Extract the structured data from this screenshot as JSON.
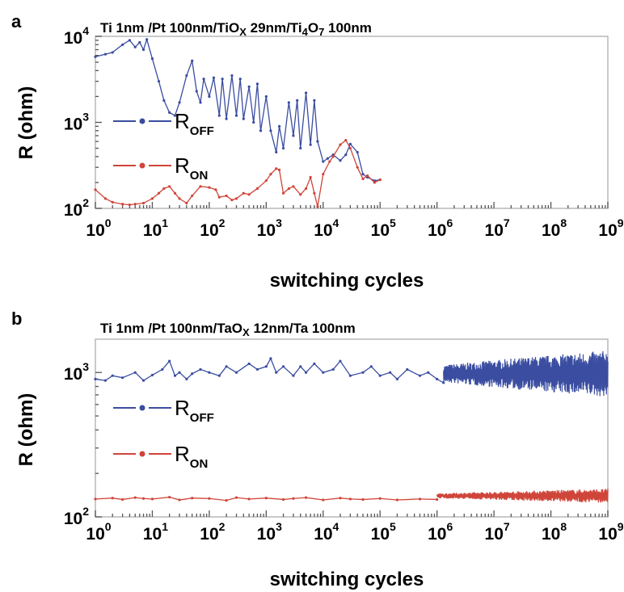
{
  "chart_data": [
    {
      "type": "line",
      "panel_label": "a",
      "title": "Ti 1nm /Pt 100nm/TiOX 29nm/Ti4O7 100nm",
      "title_parts": [
        {
          "t": "Ti 1nm /Pt 100nm/TiO"
        },
        {
          "t": "X",
          "sub": true
        },
        {
          "t": " 29nm/Ti"
        },
        {
          "t": "4",
          "sub": true
        },
        {
          "t": "O"
        },
        {
          "t": "7",
          "sub": true
        },
        {
          "t": " 100nm"
        }
      ],
      "xlabel": "switching cycles",
      "ylabel": "R (ohm)",
      "xscale": "log",
      "yscale": "log",
      "xlim": [
        1,
        1000000000
      ],
      "ylim": [
        100,
        10000
      ],
      "x_ticks": [
        {
          "base": "10",
          "exp": "0",
          "v": 1
        },
        {
          "base": "10",
          "exp": "1",
          "v": 10
        },
        {
          "base": "10",
          "exp": "2",
          "v": 100
        },
        {
          "base": "10",
          "exp": "3",
          "v": 1000
        },
        {
          "base": "10",
          "exp": "4",
          "v": 10000
        },
        {
          "base": "10",
          "exp": "5",
          "v": 100000
        },
        {
          "base": "10",
          "exp": "6",
          "v": 1000000
        },
        {
          "base": "10",
          "exp": "7",
          "v": 10000000
        },
        {
          "base": "10",
          "exp": "8",
          "v": 100000000
        },
        {
          "base": "10",
          "exp": "9",
          "v": 1000000000
        }
      ],
      "y_ticks": [
        {
          "base": "10",
          "exp": "2",
          "v": 100
        },
        {
          "base": "10",
          "exp": "3",
          "v": 1000
        },
        {
          "base": "10",
          "exp": "4",
          "v": 10000
        }
      ],
      "legend_position": "left",
      "series": [
        {
          "name": "ROFF",
          "label_main": "R",
          "label_sub": "OFF",
          "color": "#3a4da0",
          "x": [
            1,
            1.5,
            2,
            3,
            4,
            5,
            6,
            7,
            8,
            10,
            13,
            16,
            20,
            25,
            30,
            40,
            50,
            60,
            70,
            80,
            100,
            120,
            150,
            170,
            200,
            250,
            300,
            350,
            400,
            500,
            600,
            700,
            800,
            1000,
            1200,
            1500,
            1700,
            2000,
            2500,
            3000,
            3500,
            4000,
            5000,
            6000,
            7000,
            8000,
            10000,
            12000,
            15000,
            20000,
            25000,
            30000,
            40000,
            50000,
            60000,
            80000,
            100000
          ],
          "y": [
            5800,
            6200,
            6500,
            8000,
            9000,
            7500,
            8500,
            7000,
            9200,
            5500,
            3000,
            1800,
            1300,
            1200,
            1700,
            3500,
            5200,
            2300,
            1700,
            3200,
            2000,
            3300,
            1200,
            3200,
            1100,
            3500,
            1200,
            3200,
            1100,
            2600,
            1000,
            2800,
            800,
            2000,
            800,
            450,
            900,
            500,
            1700,
            700,
            1800,
            500,
            2200,
            550,
            1800,
            600,
            350,
            380,
            420,
            360,
            420,
            560,
            450,
            250,
            230,
            210,
            215
          ]
        },
        {
          "name": "RON",
          "label_main": "R",
          "label_sub": "ON",
          "color": "#d0453a",
          "x": [
            1,
            1.5,
            2,
            3,
            4,
            5,
            7,
            10,
            13,
            16,
            20,
            25,
            30,
            40,
            50,
            70,
            100,
            130,
            150,
            200,
            250,
            300,
            400,
            500,
            700,
            1000,
            1200,
            1500,
            1700,
            2000,
            2500,
            3000,
            4000,
            5000,
            6000,
            7000,
            8000,
            10000,
            13000,
            15000,
            20000,
            25000,
            30000,
            40000,
            50000,
            60000,
            80000,
            100000
          ],
          "y": [
            165,
            130,
            118,
            112,
            110,
            112,
            115,
            130,
            150,
            170,
            180,
            150,
            130,
            115,
            140,
            180,
            175,
            165,
            135,
            140,
            125,
            130,
            150,
            145,
            170,
            210,
            250,
            290,
            280,
            150,
            170,
            180,
            145,
            170,
            230,
            150,
            105,
            250,
            350,
            400,
            550,
            620,
            500,
            300,
            220,
            240,
            200,
            215
          ]
        }
      ]
    },
    {
      "type": "line",
      "panel_label": "b",
      "title": "Ti 1nm /Pt 100nm/TaOX 12nm/Ta 100nm",
      "title_parts": [
        {
          "t": "Ti 1nm /Pt 100nm/TaO"
        },
        {
          "t": "X",
          "sub": true
        },
        {
          "t": " 12nm/Ta 100nm"
        }
      ],
      "xlabel": "switching cycles",
      "ylabel": "R (ohm)",
      "xscale": "log",
      "yscale": "log",
      "xlim": [
        1,
        1000000000
      ],
      "ylim": [
        100,
        1700
      ],
      "x_ticks": [
        {
          "base": "10",
          "exp": "0",
          "v": 1
        },
        {
          "base": "10",
          "exp": "1",
          "v": 10
        },
        {
          "base": "10",
          "exp": "2",
          "v": 100
        },
        {
          "base": "10",
          "exp": "3",
          "v": 1000
        },
        {
          "base": "10",
          "exp": "4",
          "v": 10000
        },
        {
          "base": "10",
          "exp": "5",
          "v": 100000
        },
        {
          "base": "10",
          "exp": "6",
          "v": 1000000
        },
        {
          "base": "10",
          "exp": "7",
          "v": 10000000
        },
        {
          "base": "10",
          "exp": "8",
          "v": 100000000
        },
        {
          "base": "10",
          "exp": "9",
          "v": 1000000000
        }
      ],
      "y_ticks": [
        {
          "base": "10",
          "exp": "2",
          "v": 100
        },
        {
          "base": "10",
          "exp": "3",
          "v": 1000
        }
      ],
      "legend_position": "left",
      "series": [
        {
          "name": "ROFF",
          "label_main": "R",
          "label_sub": "OFF",
          "color": "#3a4da0",
          "x": [
            1,
            1.5,
            2,
            3,
            5,
            7,
            10,
            15,
            20,
            25,
            30,
            40,
            50,
            70,
            100,
            150,
            200,
            300,
            500,
            700,
            1000,
            1200,
            1500,
            2000,
            3000,
            4000,
            5000,
            7000,
            10000,
            15000,
            20000,
            30000,
            50000,
            70000,
            100000,
            150000,
            200000,
            300000,
            500000,
            700000,
            1000000,
            1300000
          ],
          "y": [
            900,
            880,
            950,
            920,
            1000,
            880,
            960,
            1050,
            1200,
            950,
            1000,
            900,
            980,
            1050,
            1000,
            950,
            1100,
            1000,
            1150,
            1050,
            1100,
            1250,
            1000,
            1100,
            950,
            1100,
            1000,
            1150,
            1000,
            1050,
            1200,
            950,
            1000,
            1100,
            950,
            1000,
            900,
            1050,
            950,
            1000,
            900,
            850
          ],
          "noisy_from": 1300000,
          "noisy_to": 1000000000,
          "noisy_center": 980,
          "noisy_spread_start": 1.15,
          "noisy_spread_end": 1.45
        },
        {
          "name": "RON",
          "label_main": "R",
          "label_sub": "ON",
          "color": "#d0453a",
          "x": [
            1,
            2,
            3,
            5,
            7,
            10,
            20,
            30,
            50,
            100,
            200,
            300,
            500,
            1000,
            2000,
            3000,
            5000,
            10000,
            20000,
            30000,
            50000,
            100000,
            200000,
            500000,
            1000000
          ],
          "y": [
            133,
            135,
            132,
            136,
            134,
            133,
            137,
            131,
            135,
            134,
            130,
            136,
            133,
            135,
            132,
            134,
            136,
            131,
            135,
            133,
            132,
            134,
            131,
            133,
            132
          ],
          "noisy_from": 1000000,
          "noisy_to": 1000000000,
          "noisy_center": 140,
          "noisy_spread_start": 1.04,
          "noisy_spread_end": 1.12
        }
      ]
    }
  ]
}
